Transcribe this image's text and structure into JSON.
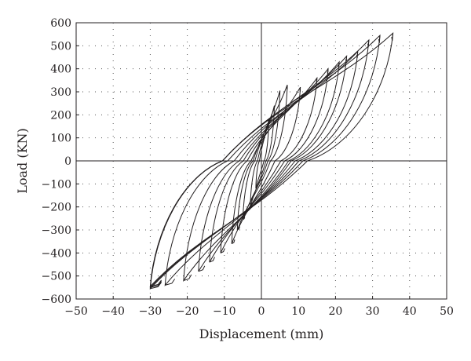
{
  "chart_data": {
    "type": "line",
    "xlabel": "Displacement (mm)",
    "ylabel": "Load (KN)",
    "xlim": [
      -50,
      50
    ],
    "ylim": [
      -600,
      600
    ],
    "x_ticks": [
      -50,
      -40,
      -30,
      -20,
      -10,
      0,
      10,
      20,
      30,
      40,
      50
    ],
    "y_ticks": [
      600,
      500,
      400,
      300,
      200,
      100,
      0,
      -100,
      -200,
      -300,
      -400,
      -500,
      -600
    ],
    "x_tick_labels": [
      "−50",
      "−40",
      "−30",
      "−20",
      "−10",
      "0",
      "10",
      "20",
      "30",
      "40",
      "50"
    ],
    "y_tick_labels": [
      "600",
      "500",
      "400",
      "300",
      "200",
      "100",
      "0",
      "−100",
      "−200",
      "−300",
      "−400",
      "−500",
      "−600"
    ],
    "grid": "dotted",
    "legend": "none",
    "line_color": "#231f20",
    "cycle_peaks": [
      {
        "d_pos": 2,
        "p_pos": 180,
        "d_neg": -1.5,
        "p_neg": -120
      },
      {
        "d_pos": 3.5,
        "p_pos": 240,
        "d_neg": -3,
        "p_neg": -200
      },
      {
        "d_pos": 5,
        "p_pos": 305,
        "d_neg": -5,
        "p_neg": -255
      },
      {
        "d_pos": 7,
        "p_pos": 330,
        "d_neg": -6.5,
        "p_neg": -300
      },
      {
        "d_pos": 10.5,
        "p_pos": 320,
        "d_neg": -8,
        "p_neg": -360
      },
      {
        "d_pos": 15,
        "p_pos": 360,
        "d_neg": -11,
        "p_neg": -400
      },
      {
        "d_pos": 18,
        "p_pos": 400,
        "d_neg": -14,
        "p_neg": -440
      },
      {
        "d_pos": 21,
        "p_pos": 430,
        "d_neg": -17,
        "p_neg": -480
      },
      {
        "d_pos": 23,
        "p_pos": 455,
        "d_neg": -21,
        "p_neg": -520
      },
      {
        "d_pos": 26,
        "p_pos": 475,
        "d_neg": -26,
        "p_neg": -540
      },
      {
        "d_pos": 29,
        "p_pos": 525,
        "d_neg": -30,
        "p_neg": -555
      },
      {
        "d_pos": 32,
        "p_pos": 545,
        "d_neg": -30,
        "p_neg": -550
      },
      {
        "d_pos": 35.5,
        "p_pos": 555,
        "d_neg": -30,
        "p_neg": -545
      }
    ]
  }
}
